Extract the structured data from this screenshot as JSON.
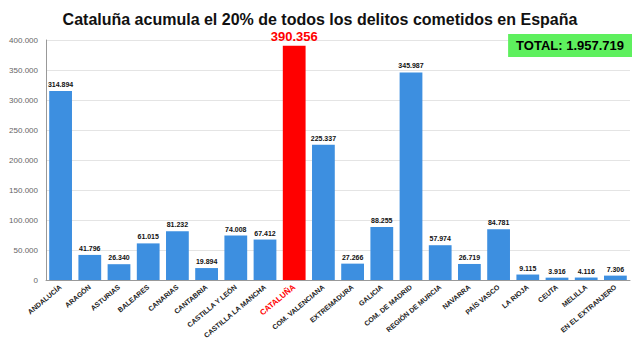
{
  "chart_data": {
    "type": "bar",
    "title": "Cataluña acumula el 20% de todos los delitos cometidos en España",
    "annotation": "TOTAL: 1.957.719",
    "categories": [
      "ANDALUCÍA",
      "ARAGÓN",
      "ASTURIAS",
      "BALEARES",
      "CANARIAS",
      "CANTABRIA",
      "CASTILLA Y LEÓN",
      "CASTILLA LA MANCHA",
      "CATALUÑA",
      "COM. VALENCIANA",
      "EXTREMADURA",
      "GALICIA",
      "COM. DE MADRID",
      "REGIÓN DE MURCIA",
      "NAVARRA",
      "PAÍS VASCO",
      "LA RIOJA",
      "CEUTA",
      "MELILLA",
      "EN EL EXTRANJERO"
    ],
    "values": [
      314894,
      41796,
      26340,
      61015,
      81232,
      19894,
      74008,
      67412,
      390356,
      225337,
      27266,
      88255,
      345987,
      57974,
      26719,
      84781,
      9115,
      3916,
      4116,
      7306
    ],
    "value_labels": [
      "314.894",
      "41.796",
      "26.340",
      "61.015",
      "81.232",
      "19.894",
      "74.008",
      "67.412",
      "390.356",
      "225.337",
      "27.266",
      "88.255",
      "345.987",
      "57.974",
      "26.719",
      "84.781",
      "9.115",
      "3.916",
      "4.116",
      "7.306"
    ],
    "colors": [
      "#3d8fe0",
      "#3d8fe0",
      "#3d8fe0",
      "#3d8fe0",
      "#3d8fe0",
      "#3d8fe0",
      "#3d8fe0",
      "#3d8fe0",
      "#ff0000",
      "#3d8fe0",
      "#3d8fe0",
      "#3d8fe0",
      "#3d8fe0",
      "#3d8fe0",
      "#3d8fe0",
      "#3d8fe0",
      "#3d8fe0",
      "#3d8fe0",
      "#3d8fe0",
      "#3d8fe0"
    ],
    "ylim": [
      0,
      400000
    ],
    "yticks": [
      0,
      {
        "value": 50000,
        "label": "50.000"
      },
      {
        "value": 100000,
        "label": "100.000"
      },
      {
        "value": 150000,
        "label": "150.000"
      },
      {
        "value": 200000,
        "label": "200.000"
      },
      {
        "value": 250000,
        "label": "250.000"
      },
      {
        "value": 300000,
        "label": "300.000"
      },
      {
        "value": 350000,
        "label": "350.000"
      },
      {
        "value": 400000,
        "label": "400.000"
      }
    ],
    "grid": true,
    "data_labels": true,
    "tick_labels": true
  }
}
